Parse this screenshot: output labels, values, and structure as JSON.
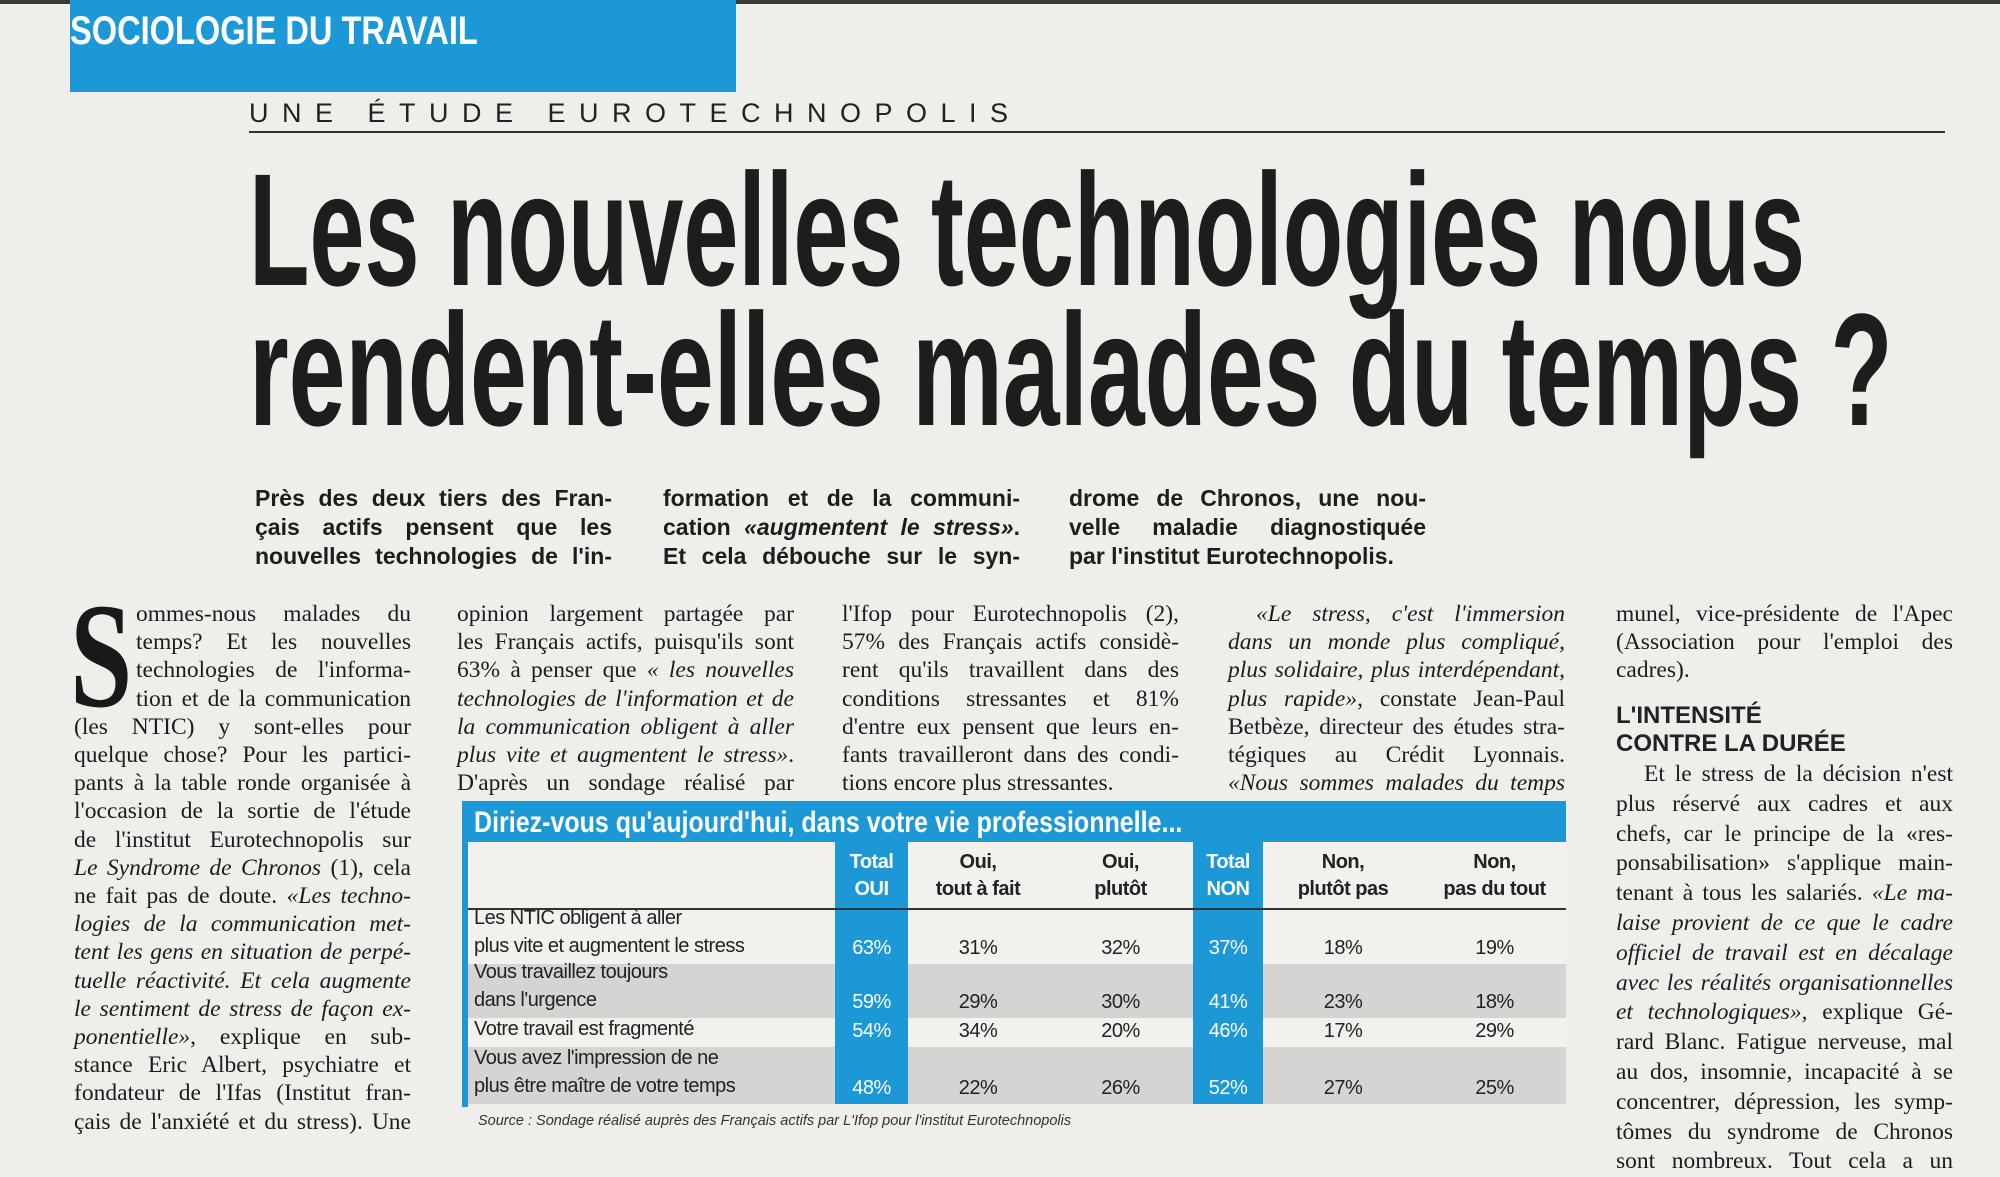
{
  "section": "SOCIOLOGIE DU TRAVAIL",
  "kicker": "UNE ÉTUDE EUROTECHNOPOLIS",
  "headline": [
    "Les nouvelles technologies nous",
    "rendent-elles malades du temps ?"
  ],
  "deck": [
    [
      "Près des deux tiers des Fran-",
      "çais actifs pensent que les",
      "nouvelles technologies de l'in-"
    ],
    [
      "formation et de la communi-",
      [
        "cation ",
        {
          "i": "«augmentent le stress»"
        },
        "."
      ],
      "Et cela débouche sur le syn-"
    ],
    [
      "drome de Chronos, une nou-",
      "velle maladie diagnostiquée",
      "par l'institut Eurotechnopolis."
    ]
  ],
  "dropcap": "S",
  "columns": [
    [
      "ommes-nous malades du",
      "temps? Et les nouvelles",
      "technologies de l'informa-",
      "tion et de la communication",
      "(les NTIC) y sont-elles pour",
      "quelque chose? Pour les partici-",
      "pants à la table ronde organisée à",
      "l'occasion de la sortie de l'étude",
      "de l'institut Eurotechnopolis sur",
      [
        {
          "i": "Le Syndrome de Chronos"
        },
        " (1), cela"
      ],
      [
        "ne fait pas de doute. ",
        {
          "i": "«Les techno-"
        }
      ],
      [
        {
          "i": "logies de la communication met-"
        }
      ],
      [
        {
          "i": "tent les gens en situation de perpé-"
        }
      ],
      [
        {
          "i": "tuelle réactivité. Et cela augmente"
        }
      ],
      [
        {
          "i": "le sentiment de stress de façon ex-"
        }
      ],
      [
        {
          "i": "ponentielle»"
        },
        ", explique en sub-"
      ],
      "stance Eric Albert, psychiatre et",
      "fondateur de l'Ifas (Institut fran-",
      "çais de l'anxiété et du stress). Une"
    ],
    [
      "opinion largement partagée par",
      "les Français actifs, puisqu'ils sont",
      [
        "63% à penser que ",
        {
          "i": "« les nouvelles"
        }
      ],
      [
        {
          "i": "technologies de l'information et de"
        }
      ],
      [
        {
          "i": "la communication obligent à aller"
        }
      ],
      [
        {
          "i": "plus vite et augmentent le stress»"
        },
        "."
      ],
      "D'après un sondage réalisé par"
    ],
    [
      "l'Ifop pour Eurotechnopolis (2),",
      "57% des Français actifs considè-",
      "rent qu'ils travaillent dans des",
      "conditions stressantes et 81%",
      "d'entre eux pensent que leurs en-",
      "fants travailleront dans des condi-",
      "tions encore plus stressantes."
    ],
    [
      [
        {
          "i": "«Le stress, c'est l'immersion"
        }
      ],
      [
        {
          "i": "dans un monde plus compliqué,"
        }
      ],
      [
        {
          "i": "plus solidaire, plus interdépendant,"
        }
      ],
      [
        {
          "i": "plus rapide»"
        },
        ", constate Jean-Paul"
      ],
      "Betbèze, directeur des études stra-",
      "tégiques au Crédit Lyonnais.",
      [
        {
          "i": "«Nous sommes malades du temps"
        }
      ]
    ],
    [
      "munel, vice-présidente de l'Apec",
      "(Association pour l'emploi des",
      "cadres)."
    ]
  ],
  "subhead": [
    "L'INTENSITÉ",
    "CONTRE LA DURÉE"
  ],
  "col5_after": [
    "Et le stress de la décision n'est",
    "plus réservé aux cadres et aux",
    "chefs, car le principe de la «res-",
    "ponsabilisation» s'applique main-",
    [
      "tenant à tous les salariés. ",
      {
        "i": "«Le ma-"
      }
    ],
    [
      {
        "i": "laise provient de ce que le cadre"
      }
    ],
    [
      {
        "i": "officiel de travail est en décalage"
      }
    ],
    [
      {
        "i": "avec les réalités organisationnelles"
      }
    ],
    [
      {
        "i": "et technologiques»"
      },
      ", explique Gé-"
    ],
    "rard Blanc. Fatigue nerveuse, mal",
    "au dos, insomnie, incapacité à se",
    "concentrer, dépression, les symp-",
    "tômes du syndrome de Chronos",
    "sont nombreux. Tout cela a un"
  ],
  "table": {
    "title": "Diriez-vous qu'aujourd'hui, dans votre vie professionnelle...",
    "headers": [
      "",
      [
        "Total",
        "OUI"
      ],
      [
        "Oui,",
        "tout à fait"
      ],
      [
        "Oui,",
        "plutôt"
      ],
      [
        "Total",
        "NON"
      ],
      [
        "Non,",
        "plutôt pas"
      ],
      [
        "Non,",
        "pas du tout"
      ]
    ],
    "rows": [
      {
        "label": [
          "Les NTIC obligent à aller",
          "plus vite et augmentent le stress"
        ],
        "values": [
          "63%",
          "31%",
          "32%",
          "37%",
          "18%",
          "19%"
        ]
      },
      {
        "label": [
          "Vous travaillez toujours",
          "dans l'urgence"
        ],
        "values": [
          "59%",
          "29%",
          "30%",
          "41%",
          "23%",
          "18%"
        ]
      },
      {
        "label": [
          "Votre travail est fragmenté"
        ],
        "values": [
          "54%",
          "34%",
          "20%",
          "46%",
          "17%",
          "29%"
        ]
      },
      {
        "label": [
          "Vous avez l'impression de ne",
          "plus être maître de votre temps"
        ],
        "values": [
          "48%",
          "22%",
          "26%",
          "52%",
          "27%",
          "25%"
        ]
      }
    ],
    "source": "Source : Sondage réalisé auprès des Français actifs par L'Ifop pour l'institut Eurotechnopolis"
  },
  "colors": {
    "accent": "#1b98d5",
    "row_gray": "#d5d4d2",
    "paper": "#efeeea"
  }
}
